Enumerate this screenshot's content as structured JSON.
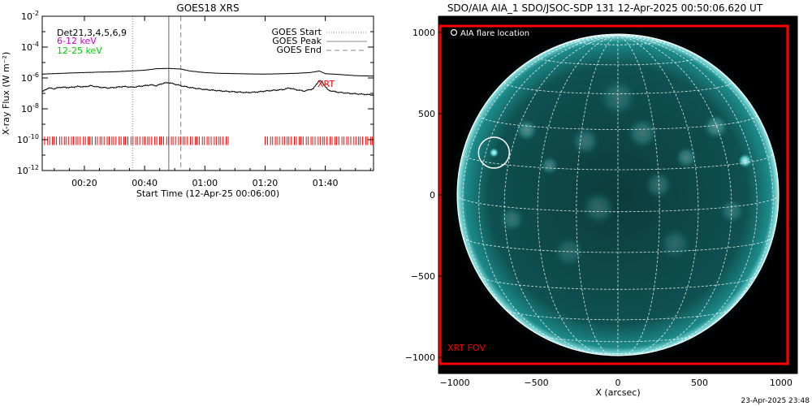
{
  "left_title": "GOES18 XRS",
  "right_title": "SDO/AIA AIA_1 SDO/JSOC-SDP 131 12-Apr-2025 00:50:06.620 UT",
  "footer_timestamp": "23-Apr-2025 23:48",
  "chart_data": [
    {
      "type": "line",
      "title": "GOES18 XRS",
      "xlabel": "Start Time (12-Apr-25 00:06:00)",
      "ylabel": "X-ray Flux (W m⁻²)",
      "y_scale": "log",
      "ylim_exp": [
        -12,
        -2
      ],
      "xlim_minutes": [
        6,
        116
      ],
      "x_ticks": [
        {
          "label": "00:20",
          "minute": 20
        },
        {
          "label": "00:40",
          "minute": 40
        },
        {
          "label": "01:00",
          "minute": 60
        },
        {
          "label": "01:20",
          "minute": 80
        },
        {
          "label": "01:40",
          "minute": 100
        }
      ],
      "y_ticks": [
        {
          "base": "10",
          "exp": "-2",
          "value": -2
        },
        {
          "base": "10",
          "exp": "-4",
          "value": -4
        },
        {
          "base": "10",
          "exp": "-6",
          "value": -6
        },
        {
          "base": "10",
          "exp": "-8",
          "value": -8
        },
        {
          "base": "10",
          "exp": "-10",
          "value": -10
        },
        {
          "base": "10",
          "exp": "-12",
          "value": -12
        }
      ],
      "detector_label": "Det21,3,4,5,6,9",
      "legend_left": [
        {
          "name": "6-12 keV",
          "color": "#cc00cc"
        },
        {
          "name": "12-25 keV",
          "color": "#00cc00"
        }
      ],
      "legend_right": [
        {
          "name": "GOES Start",
          "style": "dotted",
          "minute": 36
        },
        {
          "name": "GOES Peak",
          "style": "solid",
          "minute": 48
        },
        {
          "name": "GOES End",
          "style": "dashed",
          "minute": 52
        }
      ],
      "xrt_label": "XRT",
      "xrt_color": "#ff0000",
      "series": [
        {
          "id": "long",
          "points": [
            [
              6,
              -5.75
            ],
            [
              10,
              -5.72
            ],
            [
              15,
              -5.68
            ],
            [
              20,
              -5.65
            ],
            [
              25,
              -5.62
            ],
            [
              30,
              -5.6
            ],
            [
              35,
              -5.55
            ],
            [
              40,
              -5.5
            ],
            [
              44,
              -5.4
            ],
            [
              48,
              -5.38
            ],
            [
              52,
              -5.42
            ],
            [
              55,
              -5.55
            ],
            [
              60,
              -5.65
            ],
            [
              65,
              -5.7
            ],
            [
              70,
              -5.72
            ],
            [
              75,
              -5.74
            ],
            [
              80,
              -5.75
            ],
            [
              85,
              -5.73
            ],
            [
              90,
              -5.7
            ],
            [
              95,
              -5.65
            ],
            [
              98,
              -5.55
            ],
            [
              100,
              -5.72
            ],
            [
              105,
              -5.78
            ],
            [
              110,
              -5.85
            ],
            [
              116,
              -5.88
            ]
          ]
        },
        {
          "id": "short",
          "points": [
            [
              6,
              -6.9
            ],
            [
              8,
              -6.65
            ],
            [
              10,
              -6.7
            ],
            [
              12,
              -6.6
            ],
            [
              15,
              -6.62
            ],
            [
              18,
              -6.55
            ],
            [
              20,
              -6.58
            ],
            [
              22,
              -6.5
            ],
            [
              25,
              -6.6
            ],
            [
              28,
              -6.65
            ],
            [
              30,
              -6.62
            ],
            [
              33,
              -6.55
            ],
            [
              36,
              -6.6
            ],
            [
              40,
              -6.5
            ],
            [
              42,
              -6.45
            ],
            [
              44,
              -6.5
            ],
            [
              46,
              -6.35
            ],
            [
              48,
              -6.3
            ],
            [
              50,
              -6.4
            ],
            [
              52,
              -6.5
            ],
            [
              55,
              -6.62
            ],
            [
              58,
              -6.7
            ],
            [
              60,
              -6.75
            ],
            [
              63,
              -6.8
            ],
            [
              66,
              -6.85
            ],
            [
              70,
              -6.9
            ],
            [
              74,
              -6.95
            ],
            [
              78,
              -6.9
            ],
            [
              80,
              -6.85
            ],
            [
              83,
              -6.8
            ],
            [
              86,
              -6.75
            ],
            [
              88,
              -6.65
            ],
            [
              90,
              -6.75
            ],
            [
              93,
              -6.85
            ],
            [
              96,
              -6.7
            ],
            [
              98,
              -6.15
            ],
            [
              99,
              -6.3
            ],
            [
              101,
              -6.8
            ],
            [
              104,
              -6.92
            ],
            [
              108,
              -7.0
            ],
            [
              112,
              -7.05
            ],
            [
              116,
              -7.1
            ]
          ]
        }
      ],
      "xrt_coverage_minutes": [
        [
          6,
          68
        ],
        [
          80,
          116
        ]
      ]
    },
    {
      "type": "image",
      "xlabel": "X (arcsec)",
      "xlim": [
        -1100,
        1100
      ],
      "ylim": [
        -1100,
        1100
      ],
      "x_ticks": [
        -1000,
        -500,
        0,
        500,
        1000
      ],
      "x_tick_labels": [
        "−1000",
        "−500",
        "0",
        "500",
        "1000"
      ],
      "y_ticks": [
        1000,
        500,
        0,
        -500,
        -1000
      ],
      "y_tick_labels": [
        "1000",
        "500",
        "0",
        "−500",
        "−1000"
      ],
      "solar_radius_arcsec": 985,
      "flare_location_label": "AIA flare location",
      "flare_location_arcsec": [
        -760,
        260
      ],
      "xrt_fov_label": "XRT FOV",
      "xrt_fov_arcsec": [
        -1090,
        -1040,
        1040,
        1040
      ],
      "colors": {
        "xrt": "#ff0000",
        "disk": "#0b4848",
        "grid": "#ffffff"
      }
    }
  ]
}
